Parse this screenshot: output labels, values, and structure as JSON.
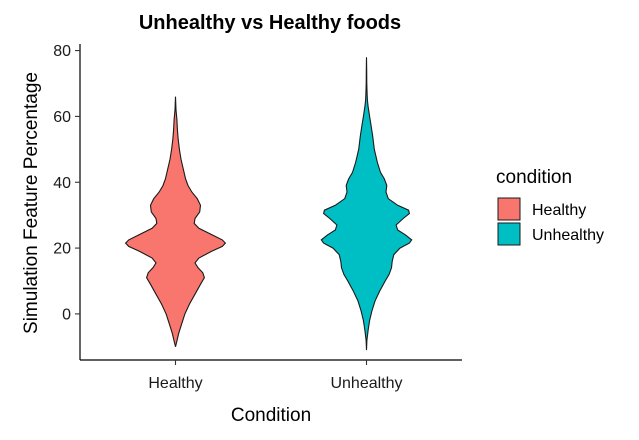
{
  "chart_data": {
    "type": "violin",
    "title": "Unhealthy vs Healthy foods",
    "xlabel": "Condition",
    "ylabel": "Simulation Feature Percentage",
    "categories": [
      "Healthy",
      "Unhealthy"
    ],
    "ylim": [
      -14,
      82
    ],
    "yticks": [
      0,
      20,
      40,
      60,
      80
    ],
    "grid": false,
    "legend": {
      "title": "condition",
      "placement": "right",
      "entries": [
        {
          "label": "Healthy",
          "color": "#F8766D"
        },
        {
          "label": "Unhealthy",
          "color": "#00BFC4"
        }
      ]
    },
    "series": [
      {
        "name": "Healthy",
        "color": "#F8766D",
        "min": -10,
        "max": 66,
        "density_profile": [
          [
            -10,
            0.0
          ],
          [
            -8,
            0.02
          ],
          [
            -6,
            0.04
          ],
          [
            -3,
            0.08
          ],
          [
            0,
            0.12
          ],
          [
            3,
            0.18
          ],
          [
            6,
            0.25
          ],
          [
            9,
            0.32
          ],
          [
            11,
            0.37
          ],
          [
            12.5,
            0.35
          ],
          [
            14,
            0.29
          ],
          [
            15.5,
            0.25
          ],
          [
            17,
            0.3
          ],
          [
            19,
            0.46
          ],
          [
            20.5,
            0.6
          ],
          [
            21.5,
            0.64
          ],
          [
            22.5,
            0.6
          ],
          [
            24,
            0.47
          ],
          [
            26,
            0.3
          ],
          [
            27.5,
            0.24
          ],
          [
            29,
            0.25
          ],
          [
            31,
            0.31
          ],
          [
            33,
            0.32
          ],
          [
            35,
            0.28
          ],
          [
            37,
            0.21
          ],
          [
            39,
            0.16
          ],
          [
            41,
            0.13
          ],
          [
            44,
            0.1
          ],
          [
            47,
            0.07
          ],
          [
            50,
            0.05
          ],
          [
            53,
            0.035
          ],
          [
            56,
            0.025
          ],
          [
            59,
            0.018
          ],
          [
            62,
            0.006
          ],
          [
            66,
            0.0
          ]
        ]
      },
      {
        "name": "Unhealthy",
        "color": "#00BFC4",
        "min": -11,
        "max": 78,
        "density_profile": [
          [
            -11,
            0.0
          ],
          [
            -8,
            0.005
          ],
          [
            -5,
            0.02
          ],
          [
            -2,
            0.04
          ],
          [
            1,
            0.07
          ],
          [
            4,
            0.11
          ],
          [
            7,
            0.17
          ],
          [
            10,
            0.24
          ],
          [
            12,
            0.29
          ],
          [
            14,
            0.32
          ],
          [
            16,
            0.33
          ],
          [
            18,
            0.35
          ],
          [
            20,
            0.43
          ],
          [
            21.5,
            0.55
          ],
          [
            22.5,
            0.58
          ],
          [
            24,
            0.5
          ],
          [
            25.5,
            0.4
          ],
          [
            27,
            0.38
          ],
          [
            29,
            0.47
          ],
          [
            30.5,
            0.55
          ],
          [
            31.5,
            0.54
          ],
          [
            33,
            0.4
          ],
          [
            35,
            0.28
          ],
          [
            37,
            0.25
          ],
          [
            39,
            0.26
          ],
          [
            41,
            0.23
          ],
          [
            43,
            0.18
          ],
          [
            46,
            0.14
          ],
          [
            50,
            0.1
          ],
          [
            54,
            0.08
          ],
          [
            57,
            0.06
          ],
          [
            60,
            0.04
          ],
          [
            63,
            0.02
          ],
          [
            65,
            0.012
          ],
          [
            67,
            0.008
          ],
          [
            70,
            0.004
          ],
          [
            74,
            0.002
          ],
          [
            78,
            0.0
          ]
        ]
      }
    ]
  }
}
